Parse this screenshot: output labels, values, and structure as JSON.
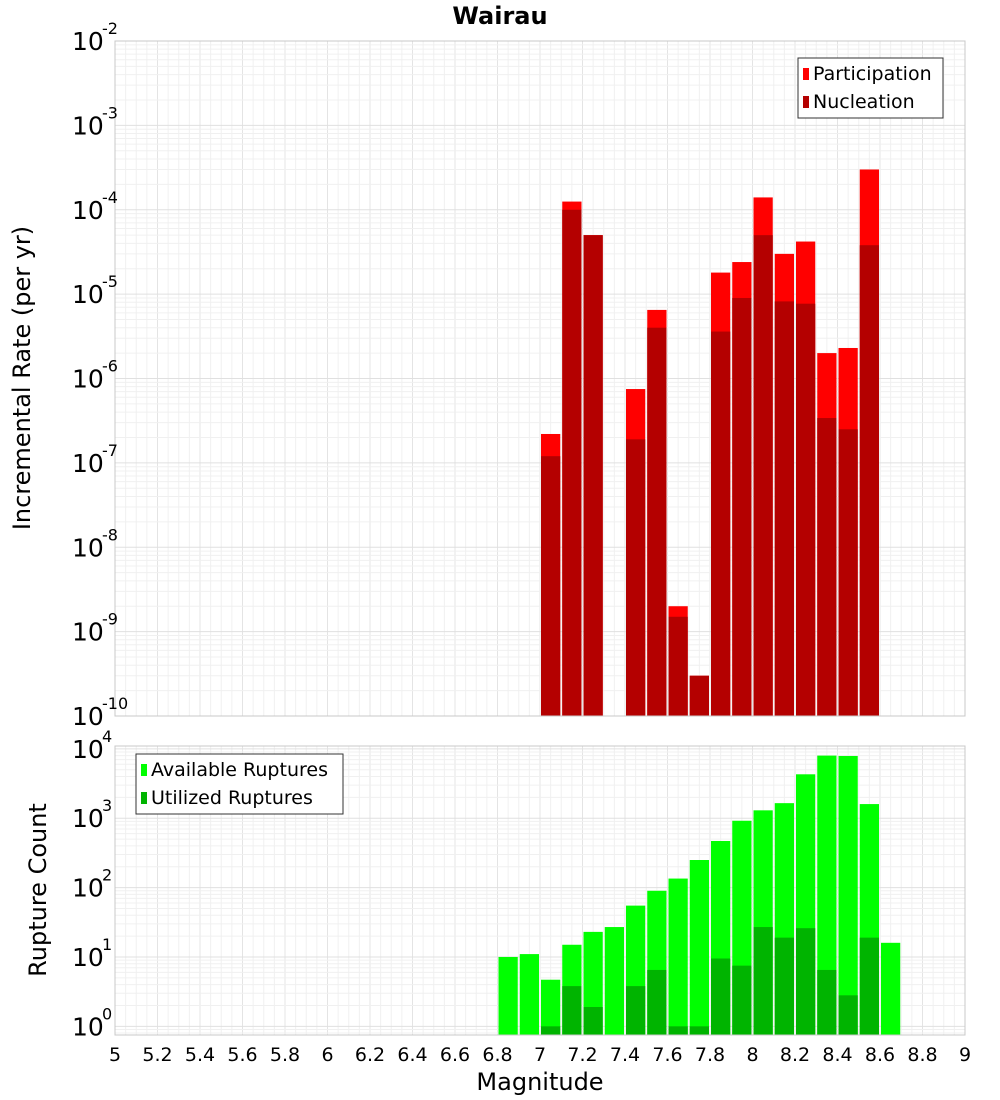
{
  "chart_data": {
    "title": "Wairau",
    "xlabel": "Magnitude",
    "xlim": [
      5,
      9
    ],
    "x_ticks": [
      "5",
      "5.2",
      "5.4",
      "5.6",
      "5.8",
      "6",
      "6.2",
      "6.4",
      "6.6",
      "6.8",
      "7",
      "7.2",
      "7.4",
      "7.6",
      "7.8",
      "8",
      "8.2",
      "8.4",
      "8.6",
      "8.8",
      "9"
    ],
    "grid": true,
    "bar_width": 0.1,
    "panels": [
      {
        "type": "bar",
        "ylabel": "Incremental Rate (per yr)",
        "yscale": "log",
        "ylim": [
          1e-10,
          0.01
        ],
        "legend_position": "top-right",
        "x": [
          7.05,
          7.15,
          7.25,
          7.35,
          7.45,
          7.55,
          7.65,
          7.75,
          7.85,
          7.95,
          8.05,
          8.15,
          8.25,
          8.35,
          8.45,
          8.55
        ],
        "series": [
          {
            "name": "Participation",
            "color": "#ff0000",
            "values": [
              2.2e-07,
              0.000125,
              5e-05,
              null,
              7.5e-07,
              6.5e-06,
              2e-09,
              3e-10,
              1.8e-05,
              2.4e-05,
              0.00014,
              3e-05,
              4.2e-05,
              2e-06,
              2.3e-06,
              0.0003
            ]
          },
          {
            "name": "Nucleation",
            "color": "#b40000",
            "values": [
              1.2e-07,
              0.0001,
              5e-05,
              null,
              1.9e-07,
              4e-06,
              1.5e-09,
              3e-10,
              3.6e-06,
              9e-06,
              5e-05,
              8.2e-06,
              7.7e-06,
              3.4e-07,
              2.5e-07,
              3.8e-05
            ]
          }
        ]
      },
      {
        "type": "bar",
        "ylabel": "Rupture Count",
        "yscale": "log",
        "ylim": [
          0.75,
          11000
        ],
        "legend_position": "top-left",
        "x": [
          6.85,
          6.95,
          7.05,
          7.15,
          7.25,
          7.35,
          7.45,
          7.55,
          7.65,
          7.75,
          7.85,
          7.95,
          8.05,
          8.15,
          8.25,
          8.35,
          8.45,
          8.55,
          8.65
        ],
        "series": [
          {
            "name": "Available Ruptures",
            "color": "#00ff00",
            "values": [
              10,
              11,
              4.7,
              15,
              23,
              27,
              55,
              90,
              135,
              250,
              470,
              920,
              1300,
              1650,
              4300,
              8000,
              7900,
              1600,
              16
            ]
          },
          {
            "name": "Utilized Ruptures",
            "color": "#00b400",
            "values": [
              null,
              null,
              1,
              3.8,
              1.9,
              null,
              3.8,
              6.5,
              1,
              1,
              9.5,
              7.5,
              27,
              19,
              26,
              6.5,
              2.8,
              19,
              null
            ]
          }
        ]
      }
    ]
  }
}
